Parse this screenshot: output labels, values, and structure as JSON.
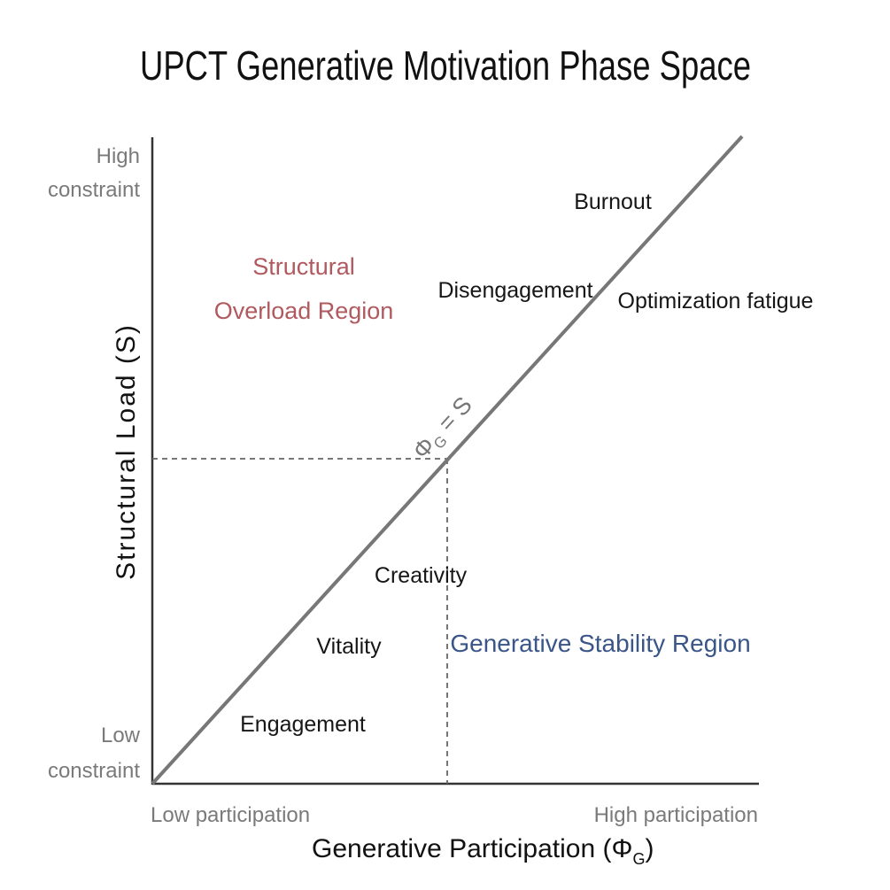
{
  "title": "UPCT Generative Motivation Phase Space",
  "y_axis": {
    "label": "Structural Load (S)",
    "high_line1": "High",
    "high_line2": "constraint",
    "low_line1": "Low",
    "low_line2": "constraint"
  },
  "x_axis": {
    "label_main": "Generative Participation (Φ",
    "label_sub": "G",
    "label_close": ")",
    "low": "Low participation",
    "high": "High participation"
  },
  "equilibrium_line": {
    "label_phi": "Φ",
    "label_sub": "G",
    "label_rest": " = S"
  },
  "regions": {
    "overload_line1": "Structural",
    "overload_line2": "Overload Region",
    "stability": "Generative Stability Region"
  },
  "states": {
    "burnout": "Burnout",
    "disengagement": "Disengagement",
    "optimization_fatigue": "Optimization fatigue",
    "creativity": "Creativity",
    "vitality": "Vitality",
    "engagement": "Engagement"
  },
  "colors": {
    "axis": "#333333",
    "line": "#777777",
    "dashed": "#666666",
    "overload": "#b05a5f",
    "stability": "#3a5588"
  }
}
